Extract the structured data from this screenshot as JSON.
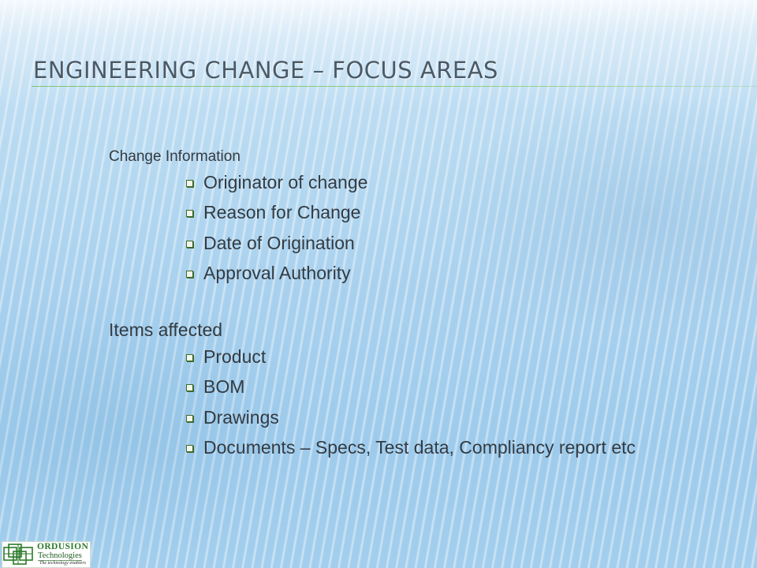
{
  "slide": {
    "title": "ENGINEERING CHANGE – FOCUS AREAS",
    "sections": [
      {
        "heading": "Change Information",
        "items": [
          "Originator of change",
          "Reason for Change",
          "Date of Origination",
          "Approval Authority"
        ]
      },
      {
        "heading": "Items affected",
        "items": [
          "Product",
          "BOM",
          "Drawings",
          "Documents – Specs, Test data, Compliancy report etc"
        ]
      }
    ]
  },
  "logo": {
    "name": "ORDUSION",
    "subtitle": "Technologies",
    "tagline": "The technology enablers"
  },
  "colors": {
    "title": "#4a5a66",
    "rule": "#7cc576",
    "text": "#333b42",
    "bullet": "#3e6a2a"
  }
}
